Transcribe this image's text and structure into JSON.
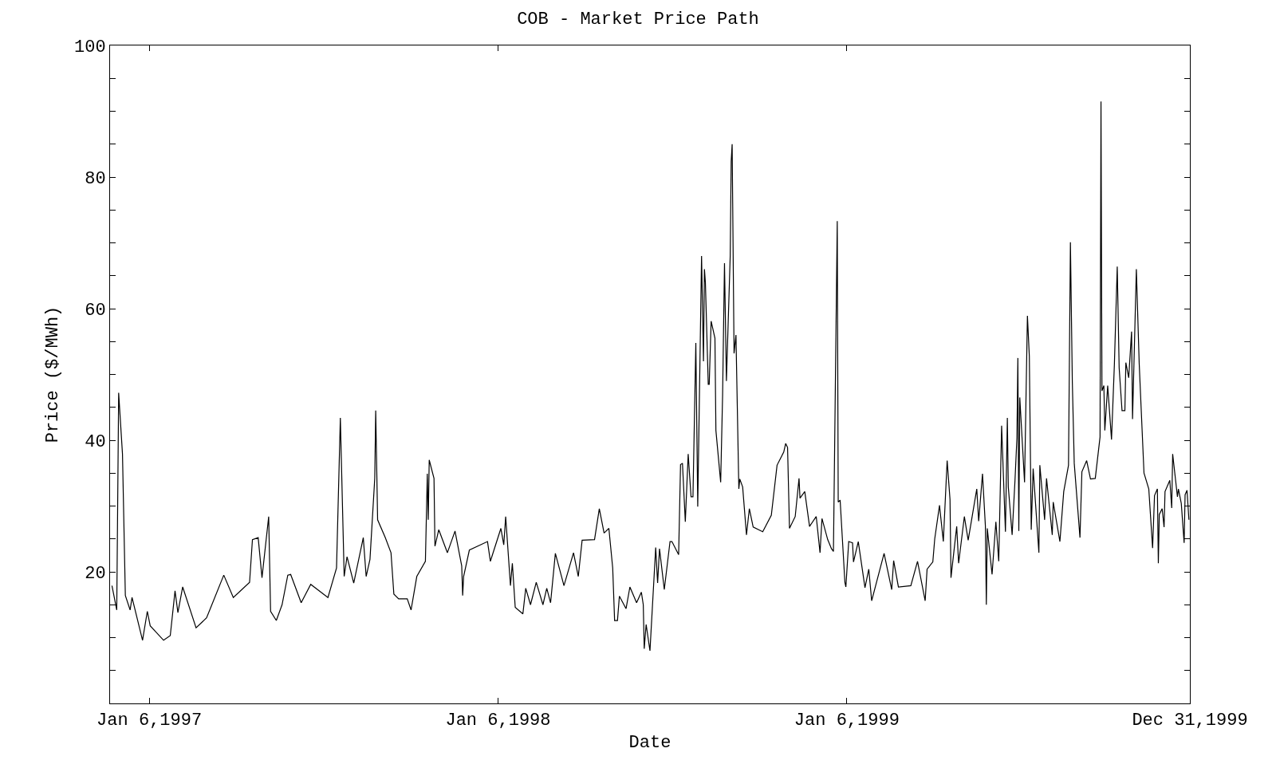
{
  "chart_data": {
    "type": "line",
    "title": "COB - Market Price Path",
    "xlabel": "Date",
    "ylabel": "Price ($/MWh)",
    "color": "#000000",
    "grid": false,
    "xlim": [
      "1996-11-26",
      "1999-12-31"
    ],
    "ylim": [
      0,
      100
    ],
    "xticks": [
      {
        "value": "1997-01-06",
        "label": "Jan 6,1997"
      },
      {
        "value": "1998-01-06",
        "label": "Jan 6,1998"
      },
      {
        "value": "1999-01-06",
        "label": "Jan 6,1999"
      },
      {
        "value": "1999-12-31",
        "label": "Dec 31,1999"
      }
    ],
    "yticks": [
      {
        "value": 0,
        "label": null
      },
      {
        "value": 5,
        "label": null
      },
      {
        "value": 10,
        "label": null
      },
      {
        "value": 15,
        "label": null
      },
      20,
      {
        "value": 25,
        "label": null
      },
      {
        "value": 30,
        "label": null
      },
      {
        "value": 35,
        "label": null
      },
      40,
      {
        "value": 45,
        "label": null
      },
      {
        "value": 50,
        "label": null
      },
      {
        "value": 55,
        "label": null
      },
      60,
      {
        "value": 65,
        "label": null
      },
      {
        "value": 70,
        "label": null
      },
      {
        "value": 75,
        "label": null
      },
      80,
      {
        "value": 85,
        "label": null
      },
      {
        "value": 90,
        "label": null
      },
      {
        "value": 95,
        "label": null
      },
      100
    ],
    "x": [
      "1996-11-28",
      "1996-12-03",
      "1996-12-05",
      "1996-12-09",
      "1996-12-12",
      "1996-12-17",
      "1996-12-19",
      "1996-12-30",
      "1997-01-04",
      "1997-01-07",
      "1997-01-21",
      "1997-01-28",
      "1997-02-02",
      "1997-02-05",
      "1997-02-10",
      "1997-02-24",
      "1997-03-07",
      "1997-03-25",
      "1997-04-04",
      "1997-04-21",
      "1997-04-24",
      "1997-04-30",
      "1997-05-04",
      "1997-05-11",
      "1997-05-13",
      "1997-05-19",
      "1997-05-25",
      "1997-05-31",
      "1997-06-03",
      "1997-06-14",
      "1997-06-24",
      "1997-07-12",
      "1997-07-21",
      "1997-07-25",
      "1997-07-29",
      "1997-08-01",
      "1997-08-08",
      "1997-08-18",
      "1997-08-21",
      "1997-08-25",
      "1997-08-30",
      "1997-08-31",
      "1997-09-02",
      "1997-09-10",
      "1997-09-16",
      "1997-09-19",
      "1997-09-24",
      "1997-10-03",
      "1997-10-07",
      "1997-10-13",
      "1997-10-22",
      "1997-10-24",
      "1997-10-25",
      "1997-10-26",
      "1997-10-31",
      "1997-11-01",
      "1997-11-05",
      "1997-11-14",
      "1997-11-22",
      "1997-11-29",
      "1997-11-30",
      "1997-12-01",
      "1997-12-07",
      "1997-12-26",
      "1997-12-29",
      "1998-01-09",
      "1998-01-12",
      "1998-01-14",
      "1998-01-19",
      "1998-01-21",
      "1998-01-24",
      "1998-02-01",
      "1998-02-04",
      "1998-02-09",
      "1998-02-15",
      "1998-02-22",
      "1998-02-26",
      "1998-03-02",
      "1998-03-07",
      "1998-03-16",
      "1998-03-26",
      "1998-03-31",
      "1998-04-04",
      "1998-04-17",
      "1998-04-22",
      "1998-04-27",
      "1998-05-02",
      "1998-05-06",
      "1998-05-08",
      "1998-05-11",
      "1998-05-13",
      "1998-05-20",
      "1998-05-24",
      "1998-05-31",
      "1998-06-05",
      "1998-06-07",
      "1998-06-08",
      "1998-06-10",
      "1998-06-14",
      "1998-06-20",
      "1998-06-22",
      "1998-06-24",
      "1998-06-29",
      "1998-07-05",
      "1998-07-07",
      "1998-07-14",
      "1998-07-16",
      "1998-07-18",
      "1998-07-21",
      "1998-07-24",
      "1998-07-27",
      "1998-07-29",
      "1998-08-01",
      "1998-08-03",
      "1998-08-07",
      "1998-08-09",
      "1998-08-10",
      "1998-08-11",
      "1998-08-14",
      "1998-08-15",
      "1998-08-17",
      "1998-08-21",
      "1998-08-22",
      "1998-08-27",
      "1998-08-29",
      "1998-08-31",
      "1998-09-02",
      "1998-09-06",
      "1998-09-07",
      "1998-09-08",
      "1998-09-10",
      "1998-09-12",
      "1998-09-15",
      "1998-09-16",
      "1998-09-19",
      "1998-09-23",
      "1998-09-26",
      "1998-09-30",
      "1998-10-10",
      "1998-10-19",
      "1998-10-25",
      "1998-11-01",
      "1998-11-03",
      "1998-11-05",
      "1998-11-07",
      "1998-11-13",
      "1998-11-17",
      "1998-11-18",
      "1998-11-23",
      "1998-11-28",
      "1998-12-05",
      "1998-12-09",
      "1998-12-11",
      "1998-12-17",
      "1998-12-21",
      "1998-12-23",
      "1998-12-27",
      "1998-12-28",
      "1998-12-30",
      "1999-01-04",
      "1999-01-05",
      "1999-01-08",
      "1999-01-12",
      "1999-01-13",
      "1999-01-18",
      "1999-01-25",
      "1999-01-29",
      "1999-02-01",
      "1999-02-14",
      "1999-02-22",
      "1999-02-24",
      "1999-03-01",
      "1999-03-14",
      "1999-03-21",
      "1999-03-29",
      "1999-03-31",
      "1999-04-06",
      "1999-04-08",
      "1999-04-13",
      "1999-04-17",
      "1999-04-21",
      "1999-04-24",
      "1999-04-25",
      "1999-05-01",
      "1999-05-03",
      "1999-05-09",
      "1999-05-13",
      "1999-05-22",
      "1999-05-24",
      "1999-05-28",
      "1999-05-31",
      "1999-06-01",
      "1999-06-02",
      "1999-06-07",
      "1999-06-11",
      "1999-06-14",
      "1999-06-17",
      "1999-06-21",
      "1999-06-23",
      "1999-06-24",
      "1999-06-28",
      "1999-07-01",
      "1999-07-03",
      "1999-07-04",
      "1999-07-05",
      "1999-07-06",
      "1999-07-11",
      "1999-07-14",
      "1999-07-16",
      "1999-07-18",
      "1999-07-20",
      "1999-07-26",
      "1999-07-27",
      "1999-08-01",
      "1999-08-03",
      "1999-08-09",
      "1999-08-10",
      "1999-08-17",
      "1999-08-21",
      "1999-08-26",
      "1999-08-28",
      "1999-08-30",
      "1999-09-01",
      "1999-09-07",
      "1999-09-09",
      "1999-09-14",
      "1999-09-18",
      "1999-09-23",
      "1999-09-28",
      "1999-09-29",
      "1999-09-30",
      "1999-10-02",
      "1999-10-03",
      "1999-10-06",
      "1999-10-10",
      "1999-10-13",
      "1999-10-16",
      "1999-10-18",
      "1999-10-21",
      "1999-10-24",
      "1999-10-25",
      "1999-10-28",
      "1999-10-31",
      "1999-11-01",
      "1999-11-05",
      "1999-11-08",
      "1999-11-10",
      "1999-11-13",
      "1999-11-18",
      "1999-11-22",
      "1999-11-24",
      "1999-11-27",
      "1999-11-28",
      "1999-11-29",
      "1999-12-02",
      "1999-12-04",
      "1999-12-05",
      "1999-12-10",
      "1999-12-12",
      "1999-12-13",
      "1999-12-18",
      "1999-12-19",
      "1999-12-22",
      "1999-12-25",
      "1999-12-26",
      "1999-12-28",
      "1999-12-30"
    ],
    "values": [
      17.9,
      14.2,
      47.2,
      37.9,
      16.4,
      14.2,
      16.1,
      9.6,
      14.0,
      11.8,
      9.6,
      10.3,
      17.1,
      13.8,
      17.7,
      11.5,
      13.0,
      19.5,
      16.1,
      18.4,
      24.9,
      25.2,
      19.1,
      28.4,
      14.0,
      12.6,
      15.0,
      19.5,
      19.6,
      15.3,
      18.1,
      16.1,
      20.6,
      43.4,
      19.3,
      22.3,
      18.3,
      25.2,
      19.3,
      21.9,
      34.2,
      44.5,
      27.9,
      25.2,
      22.9,
      16.6,
      15.9,
      15.9,
      14.2,
      19.3,
      21.6,
      34.9,
      27.9,
      37.0,
      34.2,
      23.9,
      26.4,
      22.9,
      26.2,
      20.9,
      16.4,
      19.3,
      23.3,
      24.6,
      21.6,
      26.6,
      24.1,
      28.4,
      17.9,
      21.3,
      14.6,
      13.6,
      17.5,
      15.0,
      18.4,
      15.0,
      17.5,
      15.3,
      22.8,
      17.9,
      22.9,
      19.3,
      24.8,
      24.9,
      29.6,
      25.9,
      26.6,
      20.6,
      12.6,
      12.6,
      16.3,
      14.4,
      17.7,
      15.3,
      16.9,
      15.0,
      8.3,
      12.0,
      8.0,
      23.7,
      18.3,
      23.5,
      17.3,
      24.6,
      24.6,
      22.6,
      36.3,
      36.5,
      27.6,
      37.9,
      31.4,
      31.4,
      54.8,
      29.9,
      68.0,
      52.0,
      66.0,
      64.0,
      48.5,
      48.5,
      58.1,
      55.5,
      41.5,
      33.6,
      46.8,
      66.9,
      49.0,
      68.1,
      82.4,
      85.0,
      53.2,
      56.0,
      32.6,
      34.1,
      32.9,
      25.6,
      29.6,
      26.8,
      26.1,
      28.6,
      36.2,
      38.2,
      39.5,
      38.9,
      26.6,
      28.4,
      34.2,
      31.2,
      32.2,
      26.9,
      28.4,
      22.9,
      28.1,
      24.9,
      23.5,
      23.1,
      73.3,
      30.6,
      30.9,
      18.4,
      17.7,
      24.6,
      24.4,
      21.5,
      24.6,
      17.6,
      20.4,
      15.6,
      22.8,
      17.3,
      21.7,
      17.7,
      17.9,
      21.6,
      15.6,
      20.4,
      21.5,
      25.0,
      30.1,
      24.6,
      36.9,
      31.0,
      19.1,
      26.9,
      21.3,
      28.4,
      24.8,
      32.6,
      27.7,
      34.9,
      27.0,
      15.0,
      26.6,
      19.6,
      27.6,
      21.6,
      42.2,
      26.1,
      43.4,
      32.9,
      25.6,
      33.9,
      40.3,
      52.5,
      26.2,
      46.5,
      33.6,
      58.9,
      52.8,
      26.4,
      35.7,
      22.9,
      36.2,
      27.9,
      34.2,
      25.6,
      30.6,
      24.6,
      32.2,
      36.2,
      70.1,
      48.8,
      36.5,
      25.2,
      35.2,
      36.9,
      34.1,
      34.2,
      40.5,
      91.5,
      47.5,
      48.3,
      41.5,
      48.3,
      40.1,
      51.5,
      66.4,
      51.0,
      44.5,
      44.5,
      51.8,
      49.5,
      56.5,
      43.2,
      66.0,
      51.6,
      44.9,
      35.0,
      32.6,
      23.6,
      31.6,
      32.6,
      21.3,
      28.7,
      29.6,
      26.8,
      32.2,
      33.9,
      29.7,
      37.9,
      31.4,
      32.6,
      30.4,
      24.4,
      31.7,
      32.4,
      27.9
    ]
  }
}
